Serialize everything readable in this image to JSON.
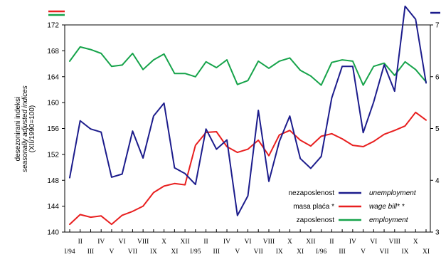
{
  "chart_data": {
    "type": "line",
    "y_axis_label": [
      "desezonirani indeksi",
      "seasonally adjusted indices",
      "(XII/1990=100)"
    ],
    "left_axis": {
      "min": 140,
      "max": 172,
      "ticks": [
        "140",
        "144",
        "148",
        "152",
        "156",
        "160",
        "164",
        "168",
        "172"
      ]
    },
    "right_axis": {
      "min": 3,
      "max": 7,
      "ticks": [
        "3",
        "4",
        "5",
        "6",
        "7"
      ]
    },
    "x_ticks_upper": [
      "II",
      "IV",
      "VI",
      "VIII",
      "X",
      "XII",
      "II",
      "IV",
      "VI",
      "VIII",
      "X",
      "XII",
      "II",
      "IV",
      "VI",
      "VIII",
      "X"
    ],
    "x_ticks_lower": [
      "I/94",
      "III",
      "V",
      "VII",
      "IX",
      "XI",
      "I/95",
      "III",
      "V",
      "VII",
      "IX",
      "XI",
      "I/96",
      "III",
      "V",
      "VII",
      "IX",
      "XI"
    ],
    "legend": [
      {
        "label": "nezaposlenost",
        "label_en": "unemployment",
        "color": "#1c1c8c"
      },
      {
        "label": "masa plaća *",
        "label_en": "wage bill* *",
        "color": "#e81f1f"
      },
      {
        "label": "zaposlenost",
        "label_en": "employment",
        "color": "#16a34a"
      }
    ],
    "series": [
      {
        "name": "employment",
        "axis": "left",
        "color": "#16a34a",
        "values": [
          166.4,
          168.6,
          168.2,
          167.6,
          165.6,
          165.8,
          167.6,
          165.1,
          166.6,
          167.5,
          164.5,
          164.5,
          164.0,
          166.3,
          165.4,
          166.6,
          162.8,
          163.4,
          166.4,
          165.3,
          166.4,
          166.9,
          165.0,
          164.1,
          162.7,
          166.2,
          166.6,
          166.4,
          162.7,
          165.6,
          166.1,
          164.2,
          166.3,
          165.1,
          163.2
        ]
      },
      {
        "name": "wage bill*",
        "axis": "left",
        "color": "#e81f1f",
        "values": [
          141.2,
          142.7,
          142.3,
          142.5,
          141.2,
          142.6,
          143.2,
          144.0,
          146.1,
          147.1,
          147.5,
          147.3,
          153.4,
          155.4,
          155.5,
          153.2,
          152.3,
          152.8,
          154.2,
          151.8,
          155.0,
          155.7,
          154.2,
          153.3,
          154.8,
          155.2,
          154.4,
          153.4,
          153.2,
          154.0,
          155.1,
          155.7,
          156.4,
          158.5,
          157.3
        ]
      },
      {
        "name": "unemployment",
        "axis": "right",
        "color": "#1c1c8c",
        "values": [
          4.05,
          5.15,
          4.99,
          4.93,
          4.06,
          4.12,
          4.95,
          4.43,
          5.24,
          5.49,
          4.24,
          4.13,
          3.92,
          4.99,
          4.6,
          4.78,
          3.32,
          3.7,
          5.35,
          3.98,
          4.75,
          5.24,
          4.42,
          4.23,
          4.46,
          5.59,
          6.2,
          6.2,
          4.92,
          5.51,
          6.23,
          5.72,
          7.36,
          7.11,
          5.88
        ]
      }
    ]
  }
}
